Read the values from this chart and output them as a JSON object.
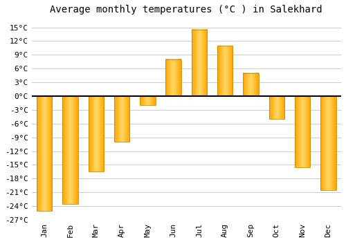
{
  "title": "Average monthly temperatures (°C ) in Salekhard",
  "months": [
    "Jan",
    "Feb",
    "Mar",
    "Apr",
    "May",
    "Jun",
    "Jul",
    "Aug",
    "Sep",
    "Oct",
    "Nov",
    "Dec"
  ],
  "values": [
    -25,
    -23.5,
    -16.5,
    -10,
    -2,
    8,
    14.5,
    11,
    5,
    -5,
    -15.5,
    -20.5
  ],
  "bar_color_light": "#FFD966",
  "bar_color_dark": "#FFA500",
  "bar_edge_color": "#CC8800",
  "ylim": [
    -27,
    17
  ],
  "yticks": [
    -27,
    -24,
    -21,
    -18,
    -15,
    -12,
    -9,
    -6,
    -3,
    0,
    3,
    6,
    9,
    12,
    15
  ],
  "ytick_labels": [
    "-27°C",
    "-24°C",
    "-21°C",
    "-18°C",
    "-15°C",
    "-12°C",
    "-9°C",
    "-6°C",
    "-3°C",
    "0°C",
    "3°C",
    "6°C",
    "9°C",
    "12°C",
    "15°C"
  ],
  "grid_color": "#cccccc",
  "bg_color": "#ffffff",
  "plot_bg_color": "#ffffff",
  "zero_line_color": "#000000",
  "title_fontsize": 10,
  "tick_fontsize": 8,
  "font_family": "monospace",
  "bar_width": 0.6
}
